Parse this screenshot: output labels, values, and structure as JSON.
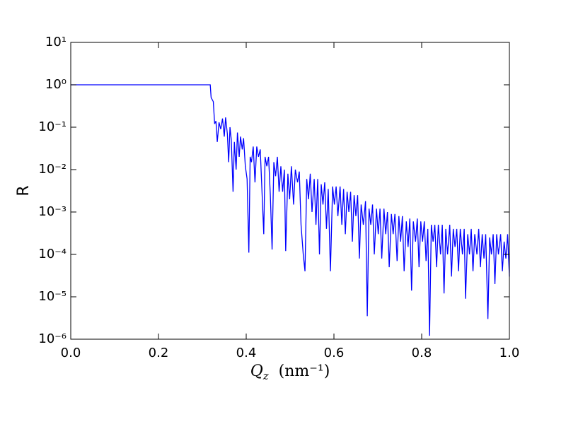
{
  "chart_data": {
    "type": "line",
    "ylabel": "R",
    "xlabel": {
      "symbol": "Q",
      "subscript": "z",
      "unit": "(nm⁻¹)"
    },
    "yscale": "log",
    "grid": false,
    "xlim": [
      0,
      1
    ],
    "ylim": [
      1e-06,
      10
    ],
    "xticks": [
      {
        "value": 0,
        "label": "0.0"
      },
      0.2,
      0.4,
      0.6,
      0.8,
      {
        "value": 1,
        "label": "1.0"
      }
    ],
    "yticks": [
      {
        "value": 1e-06,
        "label": "10⁻⁶"
      },
      {
        "value": 1e-05,
        "label": "10⁻⁵"
      },
      {
        "value": 0.0001,
        "label": "10⁻⁴"
      },
      {
        "value": 0.001,
        "label": "10⁻³"
      },
      {
        "value": 0.01,
        "label": "10⁻²"
      },
      {
        "value": 0.1,
        "label": "10⁻¹"
      },
      {
        "value": 1,
        "label": "10⁰"
      },
      {
        "value": 10,
        "label": "10¹"
      }
    ],
    "x": [
      0,
      0.318,
      0.32,
      0.325,
      0.328,
      0.331,
      0.334,
      0.338,
      0.342,
      0.346,
      0.35,
      0.353,
      0.357,
      0.36,
      0.363,
      0.366,
      0.37,
      0.373,
      0.377,
      0.38,
      0.384,
      0.387,
      0.391,
      0.394,
      0.398,
      0.402,
      0.406,
      0.409,
      0.412,
      0.416,
      0.42,
      0.424,
      0.428,
      0.432,
      0.436,
      0.44,
      0.443,
      0.447,
      0.451,
      0.455,
      0.459,
      0.463,
      0.467,
      0.471,
      0.475,
      0.479,
      0.483,
      0.487,
      0.49,
      0.495,
      0.499,
      0.503,
      0.508,
      0.512,
      0.517,
      0.521,
      0.525,
      0.53,
      0.534,
      0.538,
      0.542,
      0.546,
      0.55,
      0.555,
      0.559,
      0.563,
      0.567,
      0.571,
      0.575,
      0.579,
      0.583,
      0.587,
      0.592,
      0.597,
      0.601,
      0.605,
      0.609,
      0.614,
      0.618,
      0.622,
      0.626,
      0.63,
      0.634,
      0.638,
      0.642,
      0.646,
      0.65,
      0.654,
      0.658,
      0.662,
      0.667,
      0.672,
      0.676,
      0.68,
      0.684,
      0.688,
      0.692,
      0.697,
      0.701,
      0.705,
      0.709,
      0.714,
      0.718,
      0.722,
      0.726,
      0.731,
      0.735,
      0.739,
      0.744,
      0.748,
      0.752,
      0.756,
      0.76,
      0.765,
      0.769,
      0.773,
      0.777,
      0.781,
      0.786,
      0.79,
      0.794,
      0.798,
      0.802,
      0.806,
      0.81,
      0.814,
      0.818,
      0.822,
      0.826,
      0.83,
      0.834,
      0.838,
      0.843,
      0.847,
      0.851,
      0.855,
      0.859,
      0.864,
      0.868,
      0.872,
      0.876,
      0.88,
      0.884,
      0.888,
      0.893,
      0.897,
      0.9,
      0.905,
      0.909,
      0.913,
      0.917,
      0.921,
      0.926,
      0.93,
      0.934,
      0.938,
      0.942,
      0.946,
      0.951,
      0.955,
      0.959,
      0.963,
      0.967,
      0.971,
      0.975,
      0.98,
      0.984,
      0.988,
      0.992,
      0.996,
      1
    ],
    "series": [
      {
        "color": "#0000ff",
        "values": [
          1,
          1,
          0.5,
          0.4,
          0.12,
          0.14,
          0.045,
          0.13,
          0.09,
          0.16,
          0.06,
          0.17,
          0.07,
          0.015,
          0.1,
          0.05,
          0.003,
          0.045,
          0.01,
          0.075,
          0.02,
          0.06,
          0.03,
          0.055,
          0.012,
          0.006,
          0.00011,
          0.02,
          0.015,
          0.035,
          0.005,
          0.035,
          0.02,
          0.03,
          0.003,
          0.0003,
          0.02,
          0.012,
          0.02,
          0.0025,
          0.00013,
          0.015,
          0.007,
          0.02,
          0.003,
          0.012,
          0.003,
          0.01,
          0.00012,
          0.008,
          0.002,
          0.012,
          0.0015,
          0.01,
          0.005,
          0.009,
          0.0005,
          0.0001,
          4e-05,
          0.006,
          0.002,
          0.008,
          0.001,
          0.006,
          0.0005,
          0.006,
          0.0001,
          0.0045,
          0.0015,
          0.005,
          0.0004,
          0.0035,
          4e-05,
          0.004,
          0.0015,
          0.004,
          0.0008,
          0.004,
          0.0005,
          0.0035,
          0.0003,
          0.003,
          0.001,
          0.003,
          0.0002,
          0.0025,
          0.0008,
          0.0025,
          8e-05,
          0.0015,
          0.0005,
          0.0018,
          3.5e-06,
          0.0012,
          0.0005,
          0.0015,
          0.0001,
          0.0012,
          0.0003,
          0.0012,
          8e-05,
          0.0012,
          0.0003,
          0.001,
          5e-05,
          0.0009,
          0.0003,
          0.0009,
          7e-05,
          0.0008,
          0.0002,
          0.0008,
          4e-05,
          0.0006,
          0.00015,
          0.0007,
          1.4e-05,
          0.0006,
          0.0002,
          0.0007,
          5e-05,
          0.0006,
          0.0002,
          0.0006,
          7e-05,
          0.0004,
          1.2e-06,
          0.0005,
          0.0002,
          0.0005,
          5e-05,
          0.0005,
          0.0001,
          0.0005,
          1.2e-05,
          0.0004,
          0.0001,
          0.0005,
          3e-05,
          0.0004,
          0.00015,
          0.0004,
          4e-05,
          0.0004,
          0.0001,
          0.0004,
          9e-06,
          0.0003,
          0.0001,
          0.0004,
          4e-05,
          0.0003,
          0.0001,
          0.0004,
          5e-05,
          0.0003,
          8e-05,
          0.0003,
          3e-06,
          0.00025,
          0.0001,
          0.0003,
          2e-05,
          0.0003,
          0.0001,
          0.0003,
          4e-05,
          0.0002,
          8e-05,
          0.0003,
          3e-05
        ]
      }
    ]
  }
}
